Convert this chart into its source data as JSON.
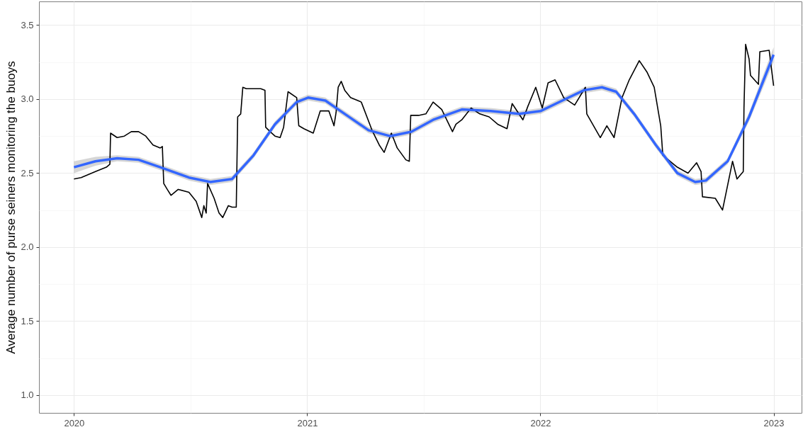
{
  "chart_data": {
    "type": "line",
    "ylabel": "Average number of purse seiners monitoring the buoys",
    "xlim": [
      2019.85,
      2023.12
    ],
    "ylim": [
      0.88,
      3.66
    ],
    "xticks": [
      2020,
      {
        "value": 2020.5,
        "label": null
      },
      2021,
      {
        "value": 2021.5,
        "label": null
      },
      2022,
      {
        "value": 2022.5,
        "label": null
      },
      2023
    ],
    "yticks": [
      {
        "value": 1,
        "label": "1.0"
      },
      {
        "value": 1.25,
        "label": null
      },
      {
        "value": 1.5,
        "label": "1.5"
      },
      {
        "value": 1.75,
        "label": null
      },
      {
        "value": 2,
        "label": "2.0"
      },
      {
        "value": 2.25,
        "label": null
      },
      {
        "value": 2.5,
        "label": "2.5"
      },
      {
        "value": 2.75,
        "label": null
      },
      {
        "value": 3,
        "label": "3.0"
      },
      {
        "value": 3.25,
        "label": null
      },
      {
        "value": 3.5,
        "label": "3.5"
      }
    ],
    "grid": true,
    "series": [
      {
        "color": "#000000",
        "x": [
          2020.0,
          2020.031,
          2020.092,
          2020.139,
          2020.154,
          2020.157,
          2020.185,
          2020.216,
          2020.246,
          2020.277,
          2020.308,
          2020.339,
          2020.37,
          2020.379,
          2020.385,
          2020.4,
          2020.416,
          2020.447,
          2020.493,
          2020.524,
          2020.548,
          2020.557,
          2020.567,
          2020.573,
          2020.601,
          2020.622,
          2020.638,
          2020.662,
          2020.678,
          2020.696,
          2020.702,
          2020.715,
          2020.724,
          2020.739,
          2020.77,
          2020.801,
          2020.819,
          2020.822,
          2020.841,
          2020.862,
          2020.884,
          2020.899,
          2020.918,
          2020.955,
          2020.964,
          2020.986,
          2021.026,
          2021.056,
          2021.093,
          2021.115,
          2021.124,
          2021.133,
          2021.146,
          2021.161,
          2021.186,
          2021.232,
          2021.278,
          2021.309,
          2021.33,
          2021.361,
          2021.386,
          2021.423,
          2021.438,
          2021.444,
          2021.478,
          2021.509,
          2021.54,
          2021.577,
          2021.623,
          2021.638,
          2021.663,
          2021.703,
          2021.74,
          2021.78,
          2021.817,
          2021.857,
          2021.879,
          2021.925,
          2021.946,
          2021.98,
          2022.008,
          2022.033,
          2022.063,
          2022.1,
          2022.147,
          2022.193,
          2022.199,
          2022.257,
          2022.285,
          2022.316,
          2022.35,
          2022.381,
          2022.424,
          2022.458,
          2022.488,
          2022.516,
          2022.525,
          2022.587,
          2022.633,
          2022.67,
          2022.689,
          2022.695,
          2022.75,
          2022.781,
          2022.824,
          2022.843,
          2022.87,
          2022.873,
          2022.88,
          2022.895,
          2022.901,
          2022.935,
          2022.941,
          2022.981,
          2023.0
        ],
        "values": [
          2.46,
          2.47,
          2.51,
          2.54,
          2.56,
          2.77,
          2.74,
          2.75,
          2.78,
          2.78,
          2.75,
          2.69,
          2.67,
          2.68,
          2.43,
          2.39,
          2.35,
          2.39,
          2.37,
          2.31,
          2.2,
          2.28,
          2.23,
          2.43,
          2.33,
          2.23,
          2.2,
          2.28,
          2.27,
          2.27,
          2.88,
          2.9,
          3.08,
          3.07,
          3.07,
          3.07,
          3.06,
          2.81,
          2.78,
          2.75,
          2.74,
          2.81,
          3.05,
          3.01,
          2.82,
          2.8,
          2.77,
          2.92,
          2.92,
          2.82,
          2.91,
          3.08,
          3.12,
          3.06,
          3.01,
          2.98,
          2.79,
          2.69,
          2.64,
          2.77,
          2.67,
          2.59,
          2.58,
          2.89,
          2.89,
          2.9,
          2.98,
          2.93,
          2.78,
          2.83,
          2.86,
          2.94,
          2.9,
          2.88,
          2.83,
          2.8,
          2.97,
          2.86,
          2.95,
          3.08,
          2.94,
          3.11,
          3.13,
          3.01,
          2.96,
          3.08,
          2.9,
          2.74,
          2.82,
          2.74,
          3.01,
          3.13,
          3.26,
          3.18,
          3.08,
          2.82,
          2.62,
          2.54,
          2.5,
          2.57,
          2.51,
          2.34,
          2.33,
          2.25,
          2.58,
          2.46,
          2.51,
          2.94,
          3.37,
          3.27,
          3.16,
          3.1,
          3.32,
          3.33,
          3.09
        ]
      },
      {
        "type": "line",
        "color": "#3366ff",
        "x": [
          2020.0,
          2020.092,
          2020.185,
          2020.277,
          2020.37,
          2020.493,
          2020.585,
          2020.678,
          2020.77,
          2020.862,
          2020.955,
          2021.004,
          2021.078,
          2021.17,
          2021.263,
          2021.355,
          2021.447,
          2021.54,
          2021.663,
          2021.786,
          2021.909,
          2022.002,
          2022.094,
          2022.187,
          2022.264,
          2022.325,
          2022.402,
          2022.495,
          2022.587,
          2022.664,
          2022.71,
          2022.803,
          2022.895,
          2023.0
        ],
        "values": [
          2.54,
          2.58,
          2.6,
          2.59,
          2.54,
          2.47,
          2.44,
          2.46,
          2.62,
          2.83,
          2.98,
          3.01,
          2.99,
          2.89,
          2.79,
          2.75,
          2.78,
          2.86,
          2.93,
          2.92,
          2.9,
          2.92,
          2.99,
          3.06,
          3.08,
          3.05,
          2.9,
          2.69,
          2.5,
          2.44,
          2.45,
          2.58,
          2.88,
          3.3
        ],
        "lower": [
          2.5,
          2.55,
          2.58,
          2.57,
          2.52,
          2.45,
          2.42,
          2.44,
          2.6,
          2.81,
          2.96,
          2.99,
          2.97,
          2.87,
          2.77,
          2.73,
          2.76,
          2.84,
          2.91,
          2.9,
          2.88,
          2.9,
          2.97,
          3.04,
          3.06,
          3.03,
          2.88,
          2.67,
          2.48,
          2.42,
          2.43,
          2.56,
          2.85,
          3.25
        ],
        "upper": [
          2.58,
          2.61,
          2.62,
          2.61,
          2.56,
          2.49,
          2.46,
          2.48,
          2.64,
          2.85,
          3.0,
          3.03,
          3.01,
          2.91,
          2.81,
          2.77,
          2.8,
          2.88,
          2.95,
          2.94,
          2.92,
          2.94,
          3.01,
          3.08,
          3.1,
          3.07,
          2.92,
          2.71,
          2.52,
          2.46,
          2.47,
          2.6,
          2.91,
          3.35
        ]
      }
    ]
  }
}
